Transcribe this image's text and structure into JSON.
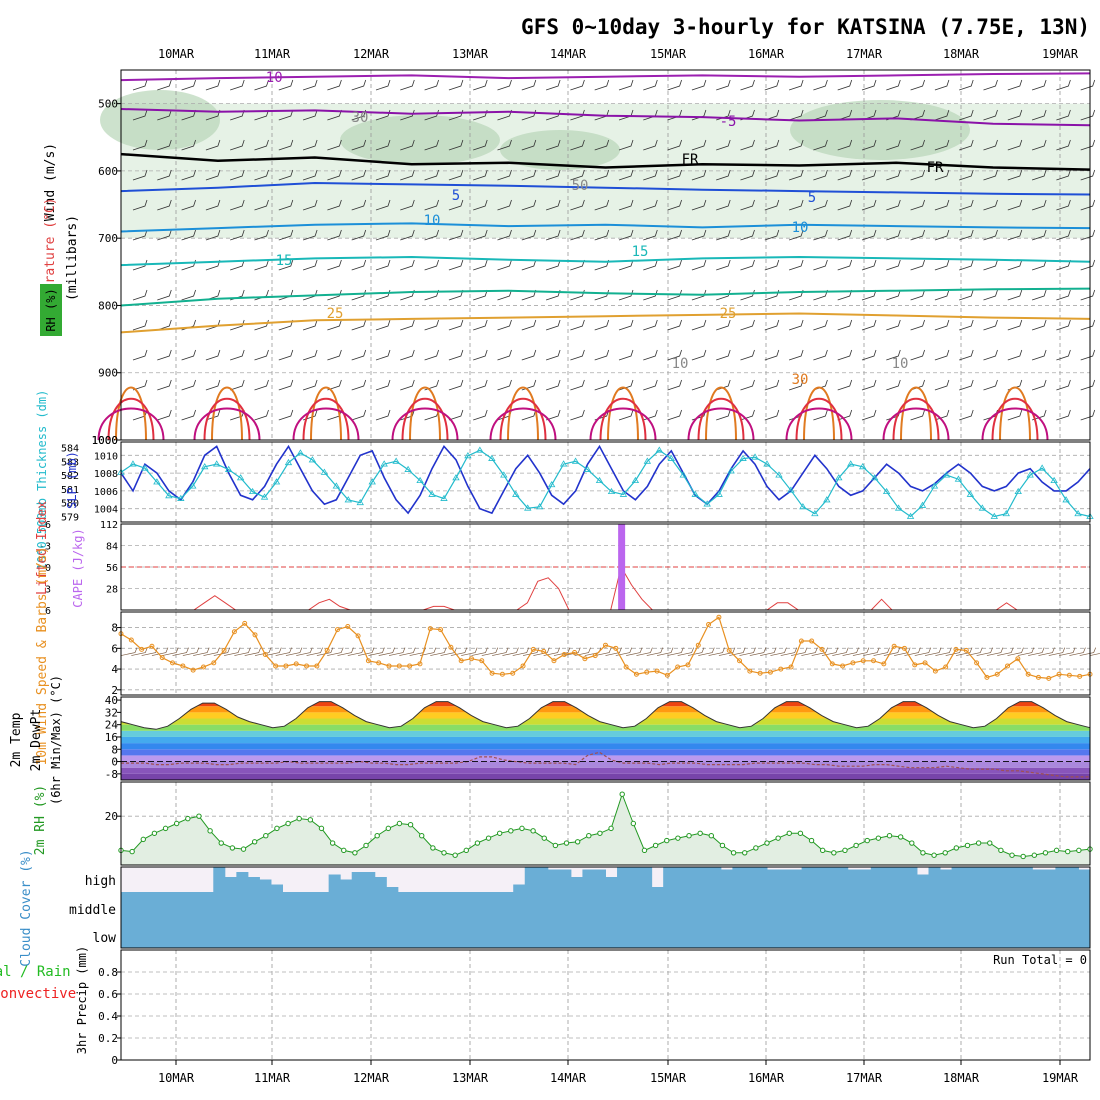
{
  "chart_data": {
    "type": "meteogram",
    "title": "GFS 0~10day 3-hourly for KATSINA (7.75E, 13N)",
    "dates": [
      "10MAR",
      "11MAR",
      "12MAR",
      "13MAR",
      "14MAR",
      "15MAR",
      "16MAR",
      "17MAR",
      "18MAR",
      "19MAR"
    ],
    "panels": [
      {
        "id": "upper_air",
        "ylabel_parts": [
          "RH (%)",
          "Temperature (°C)",
          "Wind (m/s)",
          "(millibars)"
        ],
        "yticks": [
          500,
          600,
          700,
          800,
          900,
          1000
        ],
        "ylim": [
          450,
          1000
        ],
        "contour_labels": [
          "-10",
          "-5",
          "FR",
          "5",
          "10",
          "15",
          "25",
          "30",
          "50",
          "30",
          "10"
        ],
        "temperature_isotherms_pressure": {
          "-10": [
            465,
            462,
            460,
            458,
            462,
            460,
            458,
            460,
            458,
            456,
            455
          ],
          "-5": [
            508,
            512,
            510,
            515,
            512,
            518,
            520,
            525,
            522,
            530,
            532
          ],
          "FR": [
            575,
            585,
            580,
            590,
            588,
            595,
            590,
            592,
            588,
            595,
            598
          ],
          "5": [
            630,
            625,
            618,
            620,
            622,
            625,
            628,
            630,
            632,
            634,
            635
          ],
          "10": [
            690,
            685,
            680,
            678,
            682,
            680,
            684,
            680,
            682,
            684,
            685
          ],
          "15": [
            740,
            735,
            730,
            728,
            732,
            735,
            730,
            728,
            730,
            732,
            735
          ],
          "20": [
            800,
            790,
            785,
            780,
            778,
            782,
            784,
            780,
            778,
            776,
            775
          ],
          "25": [
            840,
            830,
            822,
            820,
            818,
            816,
            814,
            812,
            815,
            818,
            820
          ]
        }
      },
      {
        "id": "thickness_slp",
        "ylabel_thickness": "1000-500mb Thickness (dm)",
        "ylabel_slp": "SLP (mb)",
        "thickness_ticks": [
          579,
          580,
          581,
          582,
          583,
          584
        ],
        "slp_ticks": [
          1004,
          1006,
          1008,
          1010
        ],
        "thickness_range": [
          579,
          584
        ],
        "slp_range": [
          1002.5,
          1011.5
        ],
        "thickness_dm": [
          582.2,
          582.8,
          582.5,
          581.5,
          580.5,
          580.3,
          581.2,
          582.6,
          582.8,
          582.4,
          581.8,
          580.8,
          580.4,
          581.5,
          582.9,
          583.6,
          583.1,
          582.2,
          581.2,
          580.2,
          580.0,
          581.5,
          582.8,
          583.0,
          582.4,
          581.6,
          580.6,
          580.3,
          581.8,
          583.4,
          583.8,
          583.2,
          582.0,
          580.6,
          579.6,
          579.7,
          581.3,
          582.8,
          583.0,
          582.4,
          581.6,
          580.8,
          580.6,
          581.6,
          583.0,
          583.8,
          583.2,
          582.0,
          580.6,
          579.9,
          580.6,
          582.3,
          583.2,
          583.3,
          582.8,
          582.0,
          580.9,
          579.7,
          579.2,
          580.2,
          581.8,
          582.8,
          582.6,
          581.8,
          580.8,
          579.6,
          579.0,
          579.8,
          581.2,
          582.0,
          581.7,
          580.6,
          579.6,
          579.0,
          579.2,
          580.8,
          582.0,
          582.5,
          581.6,
          580.2,
          579.2,
          579.0
        ],
        "slp_mb": [
          1008,
          1006,
          1009,
          1008,
          1006,
          1005,
          1007,
          1010,
          1011,
          1008,
          1005.5,
          1005,
          1006.5,
          1009,
          1011,
          1008.5,
          1006,
          1004.5,
          1005,
          1007.5,
          1010,
          1010.5,
          1007.5,
          1005,
          1003.5,
          1005.5,
          1008.5,
          1011,
          1009.5,
          1006.5,
          1004,
          1003.5,
          1006,
          1008.5,
          1010,
          1008,
          1005.5,
          1004.5,
          1006,
          1009,
          1011,
          1008.5,
          1006,
          1005,
          1006.5,
          1009,
          1010.5,
          1008,
          1005.5,
          1004.5,
          1006,
          1008.5,
          1010.5,
          1009,
          1006.5,
          1005,
          1006,
          1008,
          1010,
          1008.5,
          1006.5,
          1005.5,
          1006,
          1007.5,
          1009,
          1008,
          1006.5,
          1006,
          1006.8,
          1008,
          1009,
          1008,
          1006.5,
          1006,
          1006.5,
          1008,
          1008.5,
          1007,
          1006,
          1006,
          1007,
          1008.5
        ]
      },
      {
        "id": "li_cape",
        "ylabel_li": "Lifted Index",
        "ylabel_cape": "CAPE (J/kg)",
        "li_ticks": [
          "-6",
          "-3",
          "0",
          "3",
          "6"
        ],
        "cape_ticks": [
          28,
          56,
          84,
          112
        ],
        "li_range": [
          -6,
          6
        ],
        "cape_range": [
          0,
          112
        ],
        "lifted_index": [
          6,
          6,
          6,
          6,
          6,
          6,
          6,
          6,
          5,
          4,
          5,
          6,
          6,
          6,
          6,
          6,
          6,
          6,
          6,
          5,
          4.5,
          5.5,
          6,
          6,
          6,
          6,
          6,
          6,
          6,
          6,
          5.5,
          5.5,
          6,
          6,
          6,
          6,
          6,
          6,
          6,
          5,
          2,
          1.5,
          3,
          6,
          6,
          6,
          6,
          6,
          0,
          2.5,
          4.5,
          6,
          6,
          6,
          6,
          6,
          6,
          6,
          6,
          6,
          6,
          6,
          6,
          5,
          5,
          6,
          6,
          6,
          6,
          6,
          6,
          6,
          6,
          4.5,
          6,
          6,
          6,
          6,
          6,
          6,
          6,
          6,
          6,
          6,
          6,
          5,
          6,
          6,
          6,
          6,
          6,
          6,
          6,
          6
        ],
        "cape_bar": {
          "date_index": 48,
          "value": 112
        }
      },
      {
        "id": "wind10m",
        "ylabel": "10m Wind Speed & Barbs (m/s)",
        "yticks": [
          2,
          4,
          6,
          8
        ],
        "ylim": [
          1.5,
          9.5
        ],
        "speed_ms": [
          7.4,
          6.8,
          5.9,
          6.2,
          5.1,
          4.6,
          4.3,
          3.9,
          4.2,
          4.6,
          5.8,
          7.6,
          8.4,
          7.3,
          5.4,
          4.3,
          4.3,
          4.5,
          4.3,
          4.3,
          5.8,
          7.8,
          8.1,
          7.2,
          4.8,
          4.6,
          4.3,
          4.3,
          4.3,
          4.5,
          7.9,
          7.8,
          6.1,
          4.8,
          5.0,
          4.8,
          3.6,
          3.5,
          3.6,
          4.3,
          5.9,
          5.7,
          4.8,
          5.4,
          5.6,
          5.0,
          5.3,
          6.3,
          6.0,
          4.2,
          3.5,
          3.7,
          3.8,
          3.4,
          4.2,
          4.4,
          6.3,
          8.3,
          9.0,
          5.8,
          4.8,
          3.8,
          3.6,
          3.7,
          4.0,
          4.2,
          6.7,
          6.7,
          5.9,
          4.5,
          4.3,
          4.6,
          4.8,
          4.8,
          4.5,
          6.2,
          6.0,
          4.4,
          4.6,
          3.8,
          4.2,
          5.9,
          5.8,
          4.6,
          3.2,
          3.5,
          4.3,
          5.0,
          3.5,
          3.2,
          3.1,
          3.5,
          3.4,
          3.3,
          3.5
        ]
      },
      {
        "id": "temp2m",
        "ylabel_parts": [
          "2m Temp",
          "2m DewPt",
          "(6hr Min/Max) (°C)"
        ],
        "yticks": [
          -8,
          0,
          8,
          16,
          24,
          32,
          40
        ],
        "extra_ticks": [
          -4,
          4,
          12,
          20,
          28,
          36
        ],
        "ylim": [
          -12,
          42
        ],
        "temp_c": [
          26,
          24,
          22,
          21,
          23,
          28,
          34,
          38,
          38,
          34,
          29,
          26,
          24,
          22,
          23,
          28,
          35,
          39,
          39,
          35,
          30,
          26,
          24,
          22,
          23,
          28,
          35,
          39,
          39,
          35,
          30,
          26,
          24,
          22,
          23,
          28,
          35,
          39,
          39,
          35,
          30,
          26,
          24,
          22,
          23,
          28,
          35,
          39,
          39,
          35,
          30,
          26,
          24,
          22,
          23,
          28,
          35,
          39,
          39,
          35,
          30,
          26,
          24,
          22,
          23,
          28,
          35,
          39,
          39,
          35,
          30,
          26,
          24,
          22,
          23,
          28,
          35,
          39,
          39,
          35,
          30,
          26,
          24,
          22
        ],
        "dewpoint_c": [
          -1,
          -1,
          -1,
          -2,
          -2,
          -1,
          -1,
          -1,
          -2,
          -2,
          -1,
          -1,
          -1,
          -1,
          0,
          -1,
          -1,
          -1,
          -1,
          -1,
          0,
          -1,
          -1,
          -2,
          -2,
          -1,
          -1,
          -1,
          -1,
          0,
          3,
          3,
          1,
          0,
          -1,
          -1,
          -1,
          -1,
          -2,
          4,
          6,
          1,
          -1,
          -1,
          -1,
          -2,
          -1,
          -1,
          -1,
          -2,
          -2,
          -2,
          -2,
          -1,
          -1,
          -1,
          -1,
          -1,
          -2,
          -2,
          -3,
          -3,
          -3,
          -2,
          -2,
          -3,
          -4,
          -4,
          -4,
          -3,
          -4,
          -5,
          -5,
          -5,
          -6,
          -6,
          -7,
          -8,
          -9,
          -10,
          -10,
          -10
        ]
      },
      {
        "id": "rh2m",
        "ylabel": "2m RH (%)",
        "yticks": [
          20
        ],
        "ylim": [
          0,
          34
        ],
        "rh_percent": [
          6,
          5.5,
          10.5,
          13,
          15,
          17,
          19,
          20,
          14,
          9,
          7,
          6.5,
          9.5,
          12,
          15,
          17,
          19,
          18.5,
          15,
          9,
          6,
          5,
          8,
          12,
          15,
          17,
          16.5,
          12,
          7,
          5,
          4,
          6,
          9,
          11,
          13,
          14,
          15,
          14,
          11,
          8,
          9,
          9.5,
          12,
          13,
          15,
          29,
          17,
          6,
          8,
          10,
          11,
          12,
          13,
          12,
          8,
          5,
          5,
          7,
          9,
          11,
          13,
          13,
          10,
          6,
          5,
          6,
          8,
          10,
          11,
          12,
          11.5,
          9,
          5,
          4,
          5,
          7,
          8,
          9,
          9,
          6,
          4,
          3.5,
          4,
          5,
          6,
          5.5,
          6,
          6.5
        ]
      },
      {
        "id": "cloud",
        "ylabel": "Cloud Cover (%)",
        "levels": [
          "high",
          "middle",
          "low"
        ],
        "high_cover_percent": [
          0,
          0,
          0,
          0,
          0,
          0,
          0,
          0,
          0,
          0,
          0,
          0,
          0,
          0,
          0,
          0,
          0,
          0,
          100,
          0,
          70,
          70,
          40,
          20,
          20,
          0,
          0,
          0,
          0,
          0,
          0,
          0,
          0,
          0,
          0,
          0,
          0,
          0,
          0,
          0,
          0,
          0,
          0,
          0,
          0,
          0,
          0,
          0,
          0,
          0,
          0,
          0,
          0,
          0,
          0,
          0,
          0,
          0,
          0,
          0,
          0,
          0,
          0,
          0,
          0,
          0,
          0,
          0,
          0,
          0,
          0,
          0,
          0,
          0,
          0,
          0,
          0,
          0,
          0,
          0,
          0,
          0,
          0,
          0
        ],
        "middle_cover_percent": 100,
        "low_cover_percent": 100
      },
      {
        "id": "precip",
        "ylabel_parts": [
          "Total / Rain",
          "Convective",
          "3hr Precip (mm)"
        ],
        "yticks": [
          "0",
          "0.2",
          "0.4",
          "0.6",
          "0.8"
        ],
        "ylim": [
          0,
          1
        ],
        "run_total_label": "Run Total = 0",
        "precip_mm": []
      }
    ]
  },
  "colors": {
    "isotherm_neg10": "#9b1fb0",
    "isotherm_neg5": "#8a12a8",
    "freezing": "#000000",
    "isotherm_5": "#1f4fd6",
    "isotherm_10": "#1c8fd8",
    "isotherm_15": "#19b8b8",
    "isotherm_20": "#12b090",
    "isotherm_25": "#e0a030",
    "isotherm_30": "#e07a20",
    "isotherm_35": "#e03040",
    "isotherm_40": "#c01080",
    "rh_fill": "#e6f2e6",
    "rh_label": "#33aa33",
    "thickness": "#22bbcc",
    "slp": "#2233cc",
    "li": "#e04040",
    "cape": "#bb66ee",
    "wind_speed": "#e89020",
    "wind_barb": "#7a5a40",
    "dewpoint": "#a05050",
    "rh2m": "#229922",
    "cloud": "#6aaed6",
    "precip_total": "#22bb22",
    "precip_conv": "#ee2222"
  }
}
